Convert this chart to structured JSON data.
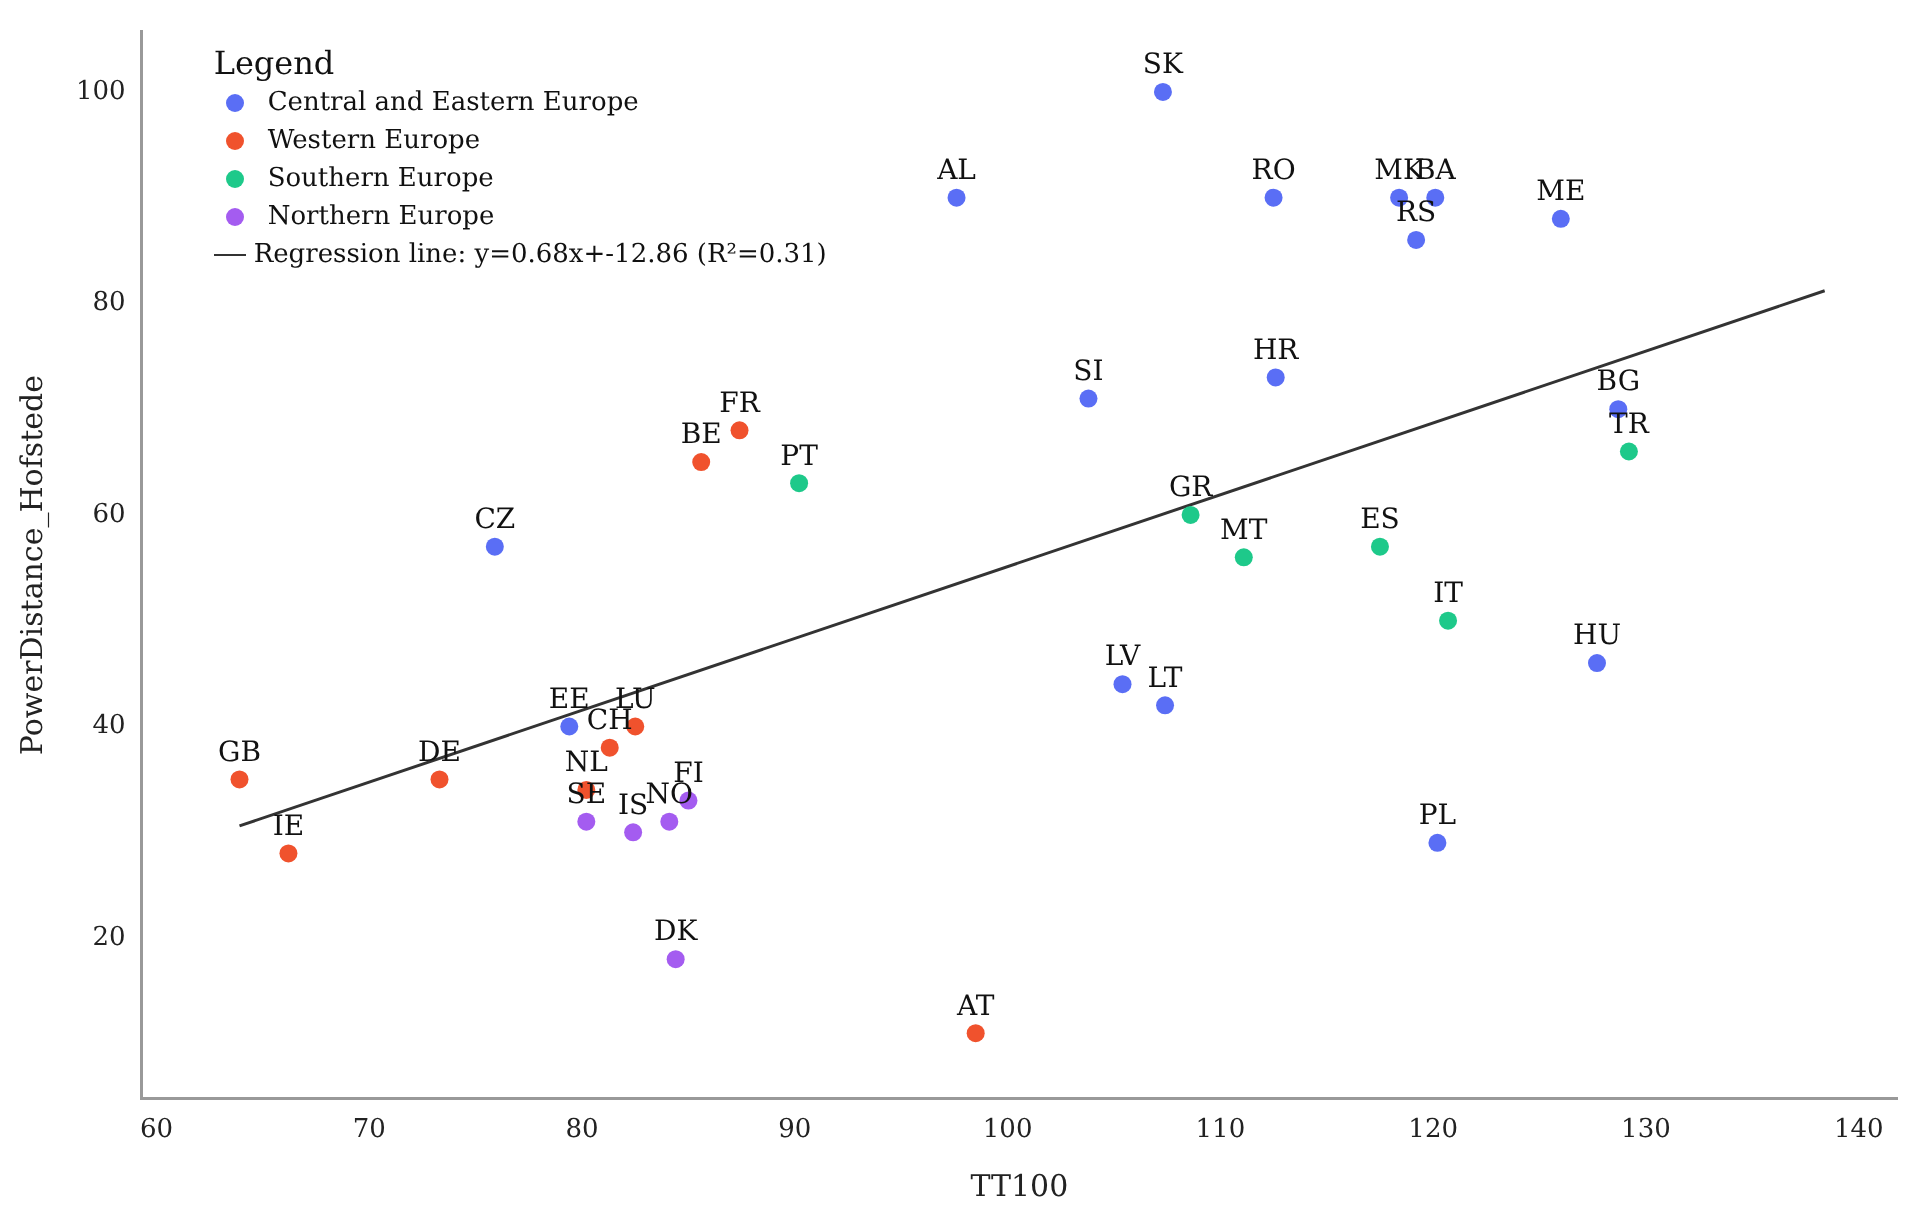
{
  "chart_data": {
    "type": "scatter",
    "xlabel": "TT100",
    "ylabel": "PowerDistance_Hofstede",
    "legend_title": "Legend",
    "legend": "top left",
    "grid": false,
    "marker": "circle",
    "xlim": [
      59.3,
      141.8
    ],
    "ylim": [
      4.8,
      105.7
    ],
    "xticks": [
      60,
      70,
      80,
      90,
      100,
      110,
      120,
      130,
      140
    ],
    "yticks": [
      20,
      40,
      60,
      80,
      100
    ],
    "series": [
      {
        "name": "Central and Eastern Europe",
        "color": "#5a6ef5",
        "x": [
          107.3,
          97.6,
          112.5,
          118.4,
          120.1,
          119.2,
          126.0,
          112.6,
          103.8,
          128.7,
          75.9,
          79.4,
          127.7,
          105.4,
          107.4,
          120.2
        ],
        "values": [
          100,
          90,
          90,
          90,
          90,
          86,
          88,
          73,
          71,
          70,
          57,
          40,
          46,
          44,
          42,
          29
        ]
      },
      {
        "name": "Western Europe",
        "color": "#f0522d",
        "x": [
          87.4,
          85.6,
          82.5,
          81.3,
          63.9,
          73.3,
          80.2,
          66.2,
          98.5
        ],
        "values": [
          68,
          65,
          40,
          38,
          35,
          35,
          34,
          28,
          11
        ]
      },
      {
        "name": "Southern Europe",
        "color": "#1ec98a",
        "x": [
          129.2,
          108.6,
          111.1,
          117.5,
          90.2,
          120.7
        ],
        "values": [
          66,
          60,
          56,
          57,
          63,
          50
        ]
      },
      {
        "name": "Northern Europe",
        "color": "#a45cf0",
        "x": [
          80.2,
          82.4,
          84.1,
          85.0,
          84.4
        ],
        "values": [
          31,
          30,
          31,
          33,
          18
        ]
      },
      {
        "name": "Regression line: y=0.68x+-12.86 (R²=0.31)",
        "type": "line",
        "color": "#333333",
        "line_style": "solid",
        "marker": "none",
        "x": [
          63.9,
          138.4
        ],
        "values": [
          30.6,
          81.2
        ]
      }
    ],
    "annotations": [
      {
        "text": "SK",
        "x": 107.3,
        "y": 100
      },
      {
        "text": "AL",
        "x": 97.6,
        "y": 90
      },
      {
        "text": "RO",
        "x": 112.5,
        "y": 90
      },
      {
        "text": "MK",
        "x": 118.4,
        "y": 90
      },
      {
        "text": "BA",
        "x": 120.1,
        "y": 90
      },
      {
        "text": "RS",
        "x": 119.2,
        "y": 86
      },
      {
        "text": "ME",
        "x": 126.0,
        "y": 88
      },
      {
        "text": "HR",
        "x": 112.6,
        "y": 73
      },
      {
        "text": "SI",
        "x": 103.8,
        "y": 71
      },
      {
        "text": "BG",
        "x": 128.7,
        "y": 70
      },
      {
        "text": "CZ",
        "x": 75.9,
        "y": 57
      },
      {
        "text": "EE",
        "x": 79.4,
        "y": 40
      },
      {
        "text": "HU",
        "x": 127.7,
        "y": 46
      },
      {
        "text": "LV",
        "x": 105.4,
        "y": 44
      },
      {
        "text": "LT",
        "x": 107.4,
        "y": 42
      },
      {
        "text": "PL",
        "x": 120.2,
        "y": 29
      },
      {
        "text": "FR",
        "x": 87.4,
        "y": 68
      },
      {
        "text": "BE",
        "x": 85.6,
        "y": 65
      },
      {
        "text": "LU",
        "x": 82.5,
        "y": 40
      },
      {
        "text": "CH",
        "x": 81.3,
        "y": 38
      },
      {
        "text": "GB",
        "x": 63.9,
        "y": 35
      },
      {
        "text": "DE",
        "x": 73.3,
        "y": 35
      },
      {
        "text": "NL",
        "x": 80.2,
        "y": 34
      },
      {
        "text": "IE",
        "x": 66.2,
        "y": 28
      },
      {
        "text": "AT",
        "x": 98.5,
        "y": 11
      },
      {
        "text": "TR",
        "x": 129.2,
        "y": 66
      },
      {
        "text": "GR",
        "x": 108.6,
        "y": 60
      },
      {
        "text": "MT",
        "x": 111.1,
        "y": 56
      },
      {
        "text": "ES",
        "x": 117.5,
        "y": 57
      },
      {
        "text": "PT",
        "x": 90.2,
        "y": 63
      },
      {
        "text": "IT",
        "x": 120.7,
        "y": 50
      },
      {
        "text": "SE",
        "x": 80.2,
        "y": 31
      },
      {
        "text": "IS",
        "x": 82.4,
        "y": 30
      },
      {
        "text": "NO",
        "x": 84.1,
        "y": 31
      },
      {
        "text": "FI",
        "x": 85.0,
        "y": 33
      },
      {
        "text": "DK",
        "x": 84.4,
        "y": 18
      }
    ]
  }
}
